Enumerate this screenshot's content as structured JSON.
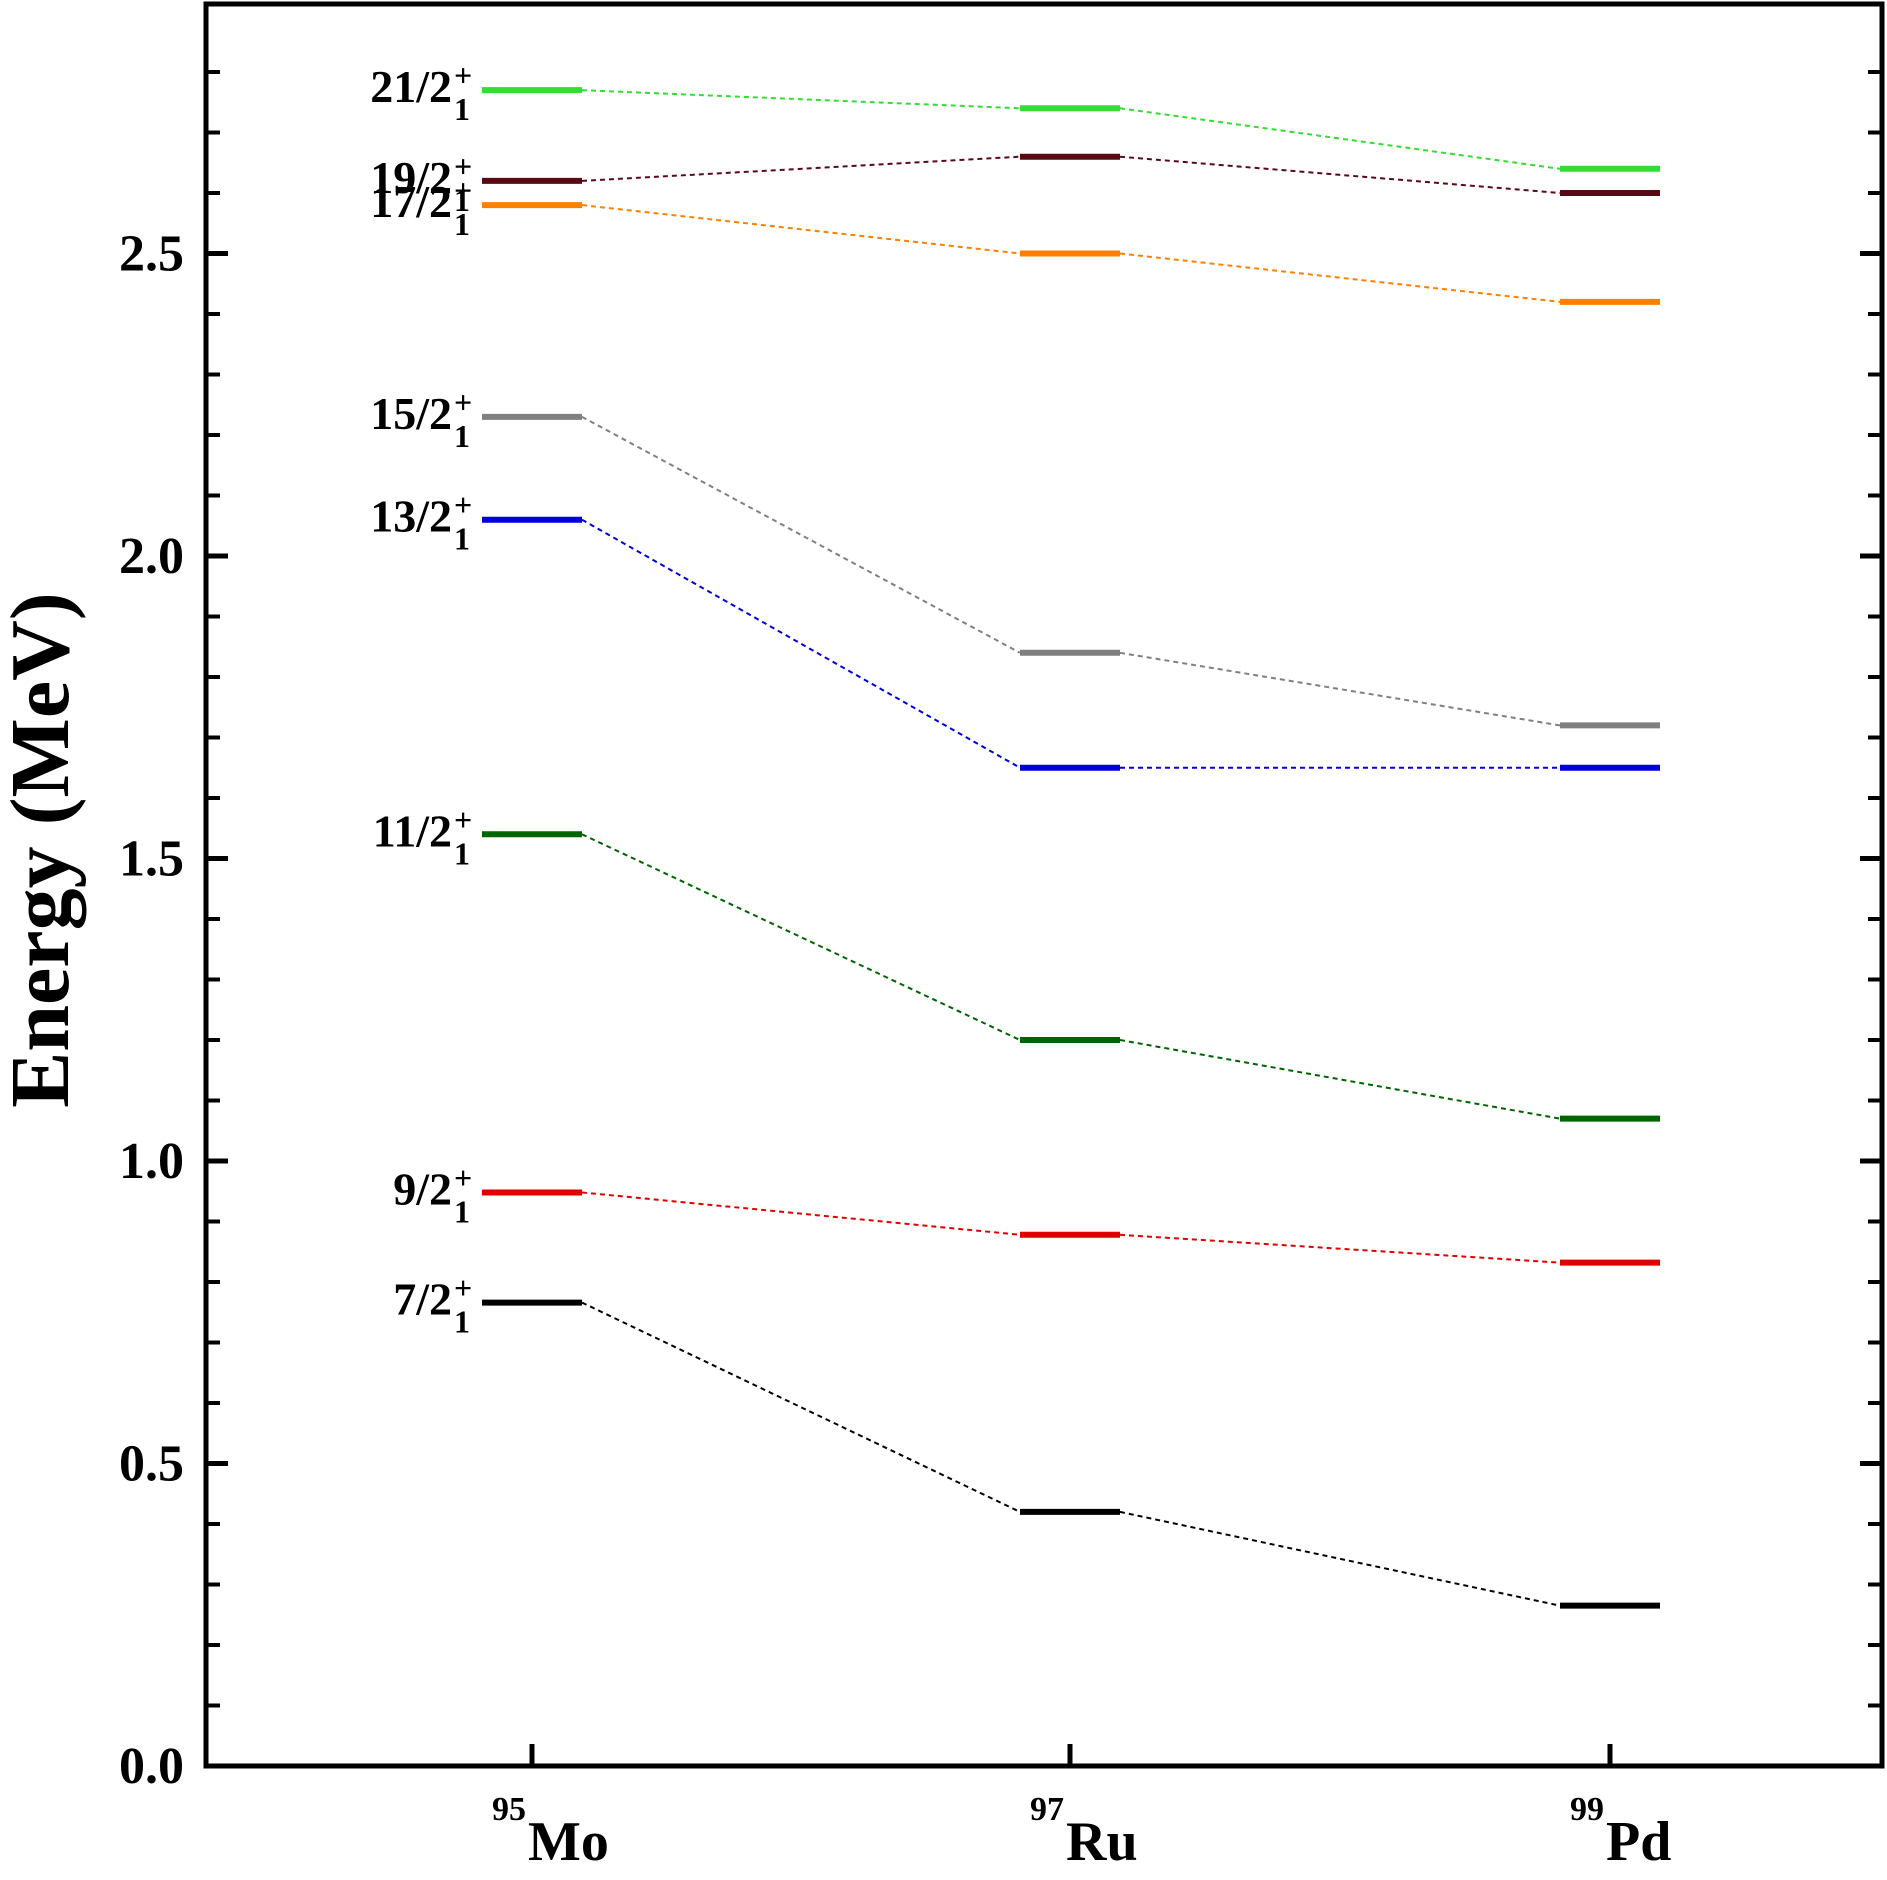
{
  "chart_data": {
    "type": "level-scheme",
    "title": "",
    "ylabel": "Energy (MeV)",
    "xlabel": "",
    "ylim": [
      0,
      2.9
    ],
    "yticks": [
      "0.0",
      "0.5",
      "1.0",
      "1.5",
      "2.0",
      "2.5"
    ],
    "ytick_values": [
      0,
      0.5,
      1.0,
      1.5,
      2.0,
      2.5
    ],
    "nuclei": [
      {
        "mass": "95",
        "element": "Mo"
      },
      {
        "mass": "97",
        "element": "Ru"
      },
      {
        "mass": "99",
        "element": "Pd"
      }
    ],
    "levels": [
      {
        "label": "7/2",
        "sub": "1",
        "sup": "+",
        "color": "#000000",
        "values": [
          0.766,
          0.42,
          0.265
        ]
      },
      {
        "label": "9/2",
        "sub": "1",
        "sup": "+",
        "color": "#e00000",
        "values": [
          0.948,
          0.878,
          0.832
        ]
      },
      {
        "label": "11/2",
        "sub": "1",
        "sup": "+",
        "color": "#006400",
        "values": [
          1.54,
          1.2,
          1.07
        ]
      },
      {
        "label": "13/2",
        "sub": "1",
        "sup": "+",
        "color": "#0000dd",
        "values": [
          2.06,
          1.65,
          1.65
        ]
      },
      {
        "label": "15/2",
        "sub": "1",
        "sup": "+",
        "color": "#808080",
        "values": [
          2.23,
          1.84,
          1.72
        ]
      },
      {
        "label": "17/2",
        "sub": "1",
        "sup": "+",
        "color": "#ff8000",
        "values": [
          2.58,
          2.5,
          2.42
        ]
      },
      {
        "label": "19/2",
        "sub": "1",
        "sup": "+",
        "color": "#5a0a14",
        "values": [
          2.62,
          2.66,
          2.6
        ]
      },
      {
        "label": "21/2",
        "sub": "1",
        "sup": "+",
        "color": "#33dd33",
        "values": [
          2.77,
          2.74,
          2.64
        ]
      }
    ]
  }
}
